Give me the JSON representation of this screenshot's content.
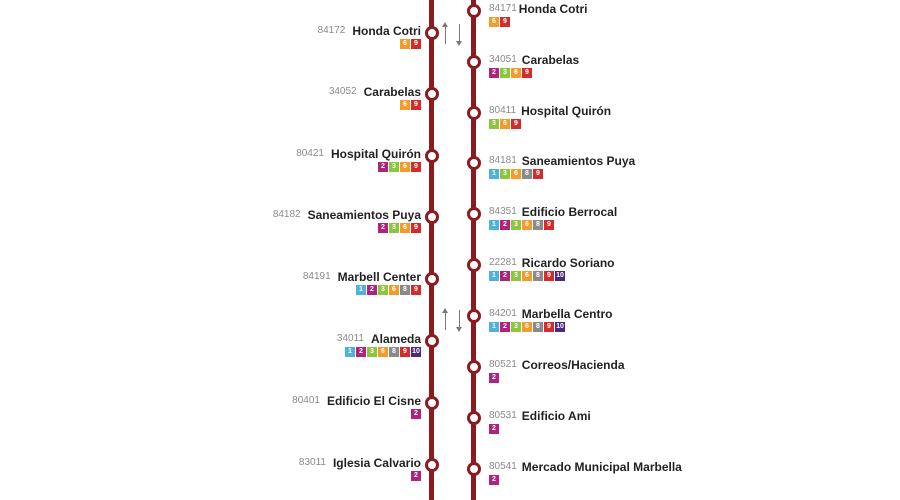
{
  "route_colors": {
    "1": "#4fb3d9",
    "2": "#b0227b",
    "3": "#8cc63f",
    "6": "#f39c2b",
    "8": "#8a8a8a",
    "9": "#d62b2b",
    "10": "#4b2a7a"
  },
  "left_stops": [
    {
      "code": "84172",
      "name": "Honda Cotri",
      "routes": [
        "6",
        "9"
      ]
    },
    {
      "code": "34052",
      "name": "Carabelas",
      "routes": [
        "6",
        "9"
      ]
    },
    {
      "code": "80421",
      "name": "Hospital Quirón",
      "routes": [
        "2",
        "3",
        "6",
        "9"
      ]
    },
    {
      "code": "84182",
      "name": "Saneamientos Puya",
      "routes": [
        "2",
        "3",
        "6",
        "9"
      ]
    },
    {
      "code": "84191",
      "name": "Marbell Center",
      "routes": [
        "1",
        "2",
        "3",
        "6",
        "8",
        "9"
      ]
    },
    {
      "code": "34011",
      "name": "Alameda",
      "routes": [
        "1",
        "2",
        "3",
        "6",
        "8",
        "9",
        "10"
      ]
    },
    {
      "code": "80401",
      "name": "Edificio El Cisne",
      "routes": [
        "2"
      ]
    },
    {
      "code": "83011",
      "name": "Iglesia Calvario",
      "routes": [
        "2"
      ]
    }
  ],
  "right_stops": [
    {
      "code": "84171",
      "name": "Honda Cotri",
      "routes": [
        "6",
        "9"
      ]
    },
    {
      "code": "34051",
      "name": "Carabelas",
      "routes": [
        "2",
        "3",
        "6",
        "9"
      ]
    },
    {
      "code": "80411",
      "name": "Hospital Quirón",
      "routes": [
        "3",
        "6",
        "9"
      ]
    },
    {
      "code": "84181",
      "name": "Saneamientos Puya",
      "routes": [
        "1",
        "3",
        "6",
        "8",
        "9"
      ]
    },
    {
      "code": "84351",
      "name": "Edificio Berrocal",
      "routes": [
        "1",
        "2",
        "3",
        "6",
        "8",
        "9"
      ]
    },
    {
      "code": "22281",
      "name": "Ricardo Soriano",
      "routes": [
        "1",
        "2",
        "3",
        "6",
        "8",
        "9",
        "10"
      ]
    },
    {
      "code": "84201",
      "name": "Marbella Centro",
      "routes": [
        "1",
        "2",
        "3",
        "6",
        "8",
        "9",
        "10"
      ]
    },
    {
      "code": "80521",
      "name": "Correos/Hacienda",
      "routes": [
        "2"
      ]
    },
    {
      "code": "80531",
      "name": "Edificio Ami",
      "routes": [
        "2"
      ]
    },
    {
      "code": "80541",
      "name": "Mercado Municipal Marbella",
      "routes": [
        "2"
      ]
    }
  ]
}
